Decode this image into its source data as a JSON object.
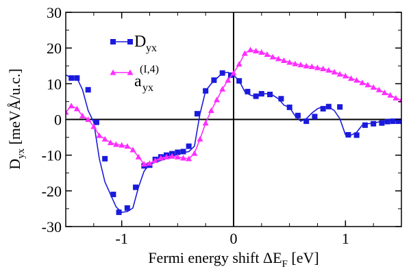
{
  "chart_data": {
    "type": "line",
    "title": "",
    "xlabel_main": "Fermi energy shift ΔE",
    "xlabel_sub": "F",
    "xlabel_unit": " [eV]",
    "ylabel_main": "D",
    "ylabel_sub": "yx",
    "ylabel_unit": "  [meVÅ/u.c.]",
    "xlim": [
      -1.5,
      1.5
    ],
    "ylim": [
      -30,
      30
    ],
    "xticks": [
      -1,
      0,
      1
    ],
    "yticks": [
      -30,
      -20,
      -10,
      0,
      10,
      20,
      30
    ],
    "xtick_labels": [
      "-1",
      "0",
      "1"
    ],
    "ytick_labels": [
      "-30",
      "-20",
      "-10",
      "0",
      "10",
      "20",
      "30"
    ],
    "grid": false,
    "zero_lines": true,
    "legend_position": "top-left",
    "series": [
      {
        "name": "D",
        "name_sub": "yx",
        "name_sup": "",
        "color": "#1a1adc",
        "marker": "square",
        "x": [
          -1.5,
          -1.45,
          -1.4,
          -1.35,
          -1.3,
          -1.25,
          -1.2,
          -1.15,
          -1.1,
          -1.05,
          -1.0,
          -0.95,
          -0.9,
          -0.85,
          -0.8,
          -0.75,
          -0.7,
          -0.65,
          -0.6,
          -0.55,
          -0.5,
          -0.45,
          -0.4,
          -0.35,
          -0.3,
          -0.25,
          -0.2,
          -0.15,
          -0.1,
          -0.05,
          0.0,
          0.05,
          0.1,
          0.15,
          0.2,
          0.25,
          0.3,
          0.35,
          0.4,
          0.45,
          0.5,
          0.55,
          0.6,
          0.65,
          0.7,
          0.75,
          0.8,
          0.85,
          0.9,
          0.95,
          1.0,
          1.05,
          1.1,
          1.15,
          1.2,
          1.25,
          1.3,
          1.35,
          1.4,
          1.45,
          1.5
        ],
        "y": [
          12.5,
          11.6,
          11.6,
          8.3,
          2.5,
          -0.8,
          -11.0,
          -17.5,
          -21.0,
          -24.5,
          -26.0,
          -25.8,
          -24.8,
          -19.0,
          -14.5,
          -12.5,
          -12.0,
          -11.5,
          -11.0,
          -10.3,
          -9.8,
          -9.3,
          -9.0,
          -7.5,
          1.6,
          8.0,
          10.0,
          11.5,
          13.0,
          13.2,
          12.4,
          10.8,
          7.8,
          6.8,
          6.4,
          7.2,
          7.2,
          6.8,
          5.8,
          4.0,
          3.4,
          1.0,
          -0.5,
          0.2,
          1.8,
          3.0,
          3.6,
          3.5,
          2.5,
          0.2,
          -4.3,
          -4.4,
          -3.6,
          -1.6,
          -1.2,
          -1.0,
          -0.7,
          -0.5,
          -0.4,
          -0.3,
          -0.5
        ],
        "marker_x": [
          -1.45,
          -1.4,
          -1.3,
          -1.225,
          -1.15,
          -1.075,
          -1.025,
          -0.95,
          -0.875,
          -0.8,
          -0.75,
          -0.7,
          -0.65,
          -0.6,
          -0.55,
          -0.5,
          -0.45,
          -0.4,
          -0.325,
          -0.25,
          -0.175,
          -0.1,
          -0.025,
          0.05,
          0.125,
          0.2,
          0.25,
          0.325,
          0.425,
          0.5,
          0.575,
          0.65,
          0.725,
          0.8,
          0.85,
          0.95,
          1.025,
          1.1,
          1.175,
          1.25,
          1.325,
          1.375,
          1.425,
          1.475
        ],
        "marker_y": [
          11.6,
          11.6,
          8.3,
          -0.8,
          -11.0,
          -21.0,
          -26.0,
          -24.8,
          -19.0,
          -13.0,
          -12.8,
          -11.2,
          -10.5,
          -10.0,
          -9.6,
          -9.2,
          -9.0,
          -7.5,
          1.6,
          8.0,
          11.0,
          13.0,
          12.4,
          10.8,
          7.8,
          6.5,
          7.2,
          7.0,
          5.8,
          3.4,
          1.1,
          -0.5,
          0.8,
          3.0,
          3.6,
          3.5,
          -4.3,
          -4.4,
          -1.6,
          -1.2,
          -1.0,
          -0.6,
          -0.5,
          -0.5
        ]
      },
      {
        "name": "a",
        "name_sub": "yx",
        "name_sup": "(I,4)",
        "color": "#ff2dff",
        "marker": "triangle",
        "x": [
          -1.5,
          -1.45,
          -1.4,
          -1.35,
          -1.3,
          -1.25,
          -1.2,
          -1.15,
          -1.1,
          -1.05,
          -1.0,
          -0.95,
          -0.9,
          -0.85,
          -0.8,
          -0.75,
          -0.7,
          -0.65,
          -0.6,
          -0.55,
          -0.5,
          -0.45,
          -0.4,
          -0.35,
          -0.3,
          -0.25,
          -0.2,
          -0.15,
          -0.1,
          -0.05,
          0.0,
          0.05,
          0.1,
          0.15,
          0.2,
          0.25,
          0.3,
          0.35,
          0.4,
          0.45,
          0.5,
          0.55,
          0.6,
          0.65,
          0.7,
          0.75,
          0.8,
          0.85,
          0.9,
          0.95,
          1.0,
          1.05,
          1.1,
          1.15,
          1.2,
          1.25,
          1.3,
          1.35,
          1.4,
          1.45,
          1.5
        ],
        "y": [
          2.0,
          3.8,
          3.0,
          1.0,
          0.0,
          -2.0,
          -4.5,
          -5.5,
          -6.5,
          -7.0,
          -7.2,
          -7.5,
          -8.5,
          -10.5,
          -12.5,
          -12.3,
          -11.5,
          -10.8,
          -10.5,
          -10.3,
          -10.5,
          -10.8,
          -11.0,
          -9.5,
          -5.5,
          -1.0,
          2.5,
          5.5,
          8.5,
          11.0,
          13.0,
          15.5,
          18.5,
          19.5,
          19.2,
          18.8,
          18.2,
          17.5,
          17.0,
          16.5,
          16.0,
          15.6,
          15.3,
          15.0,
          14.8,
          14.5,
          14.2,
          13.8,
          13.3,
          12.7,
          12.2,
          11.5,
          11.0,
          10.3,
          9.7,
          9.0,
          8.3,
          7.5,
          6.8,
          6.0,
          5.4
        ]
      }
    ]
  }
}
